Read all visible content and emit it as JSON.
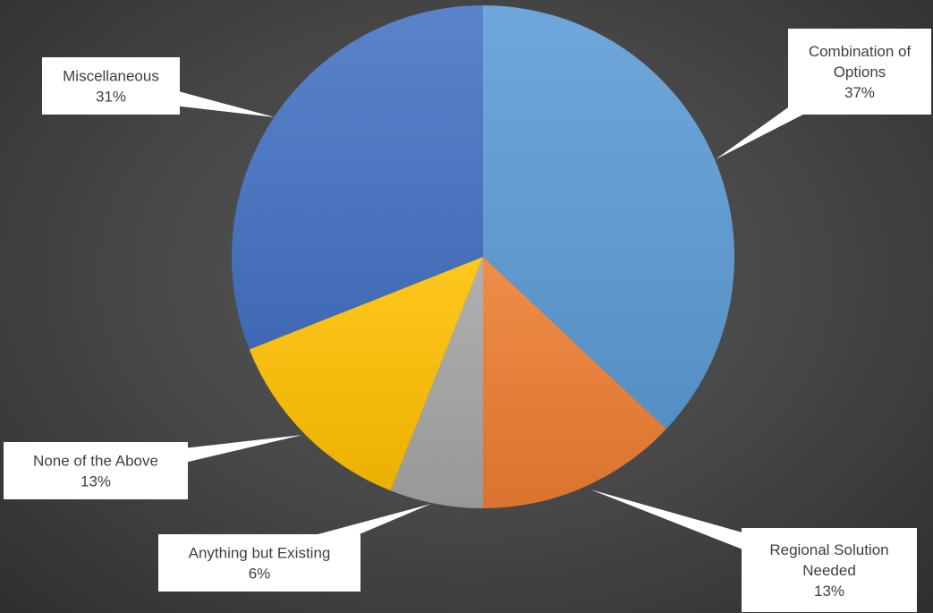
{
  "chart_data": {
    "type": "pie",
    "title": "",
    "start_angle_deg": 0,
    "direction": "clockwise",
    "slices": [
      {
        "label": "Combination of Options",
        "label_lines": [
          "Combination of",
          "Options"
        ],
        "value": 37,
        "percent_label": "37%",
        "color": "#5b9bd5"
      },
      {
        "label": "Regional Solution Needed",
        "label_lines": [
          "Regional Solution",
          "Needed"
        ],
        "value": 13,
        "percent_label": "13%",
        "color": "#ed7d31"
      },
      {
        "label": "Anything but Existing",
        "label_lines": [
          "Anything but Existing"
        ],
        "value": 6,
        "percent_label": "6%",
        "color": "#a5a5a5"
      },
      {
        "label": "None of the Above",
        "label_lines": [
          "None of the Above"
        ],
        "value": 13,
        "percent_label": "13%",
        "color": "#ffc000"
      },
      {
        "label": "Miscellaneous",
        "label_lines": [
          "Miscellaneous"
        ],
        "value": 31,
        "percent_label": "31%",
        "color": "#4472c4"
      }
    ],
    "legend": "none",
    "data_labels": "callouts"
  },
  "colors": {
    "background": "#3f3f3f",
    "callout_fill": "#ffffff",
    "callout_text": "#404040"
  }
}
